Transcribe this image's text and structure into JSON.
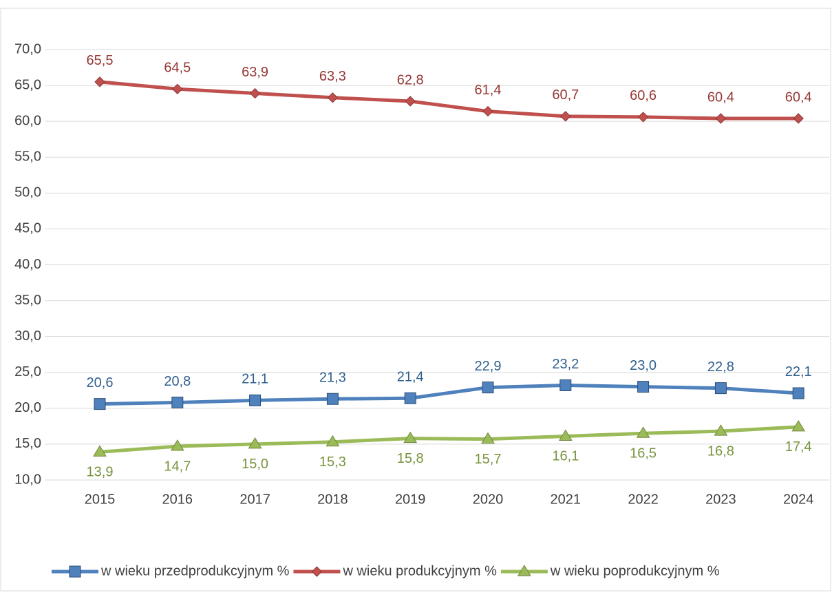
{
  "chart_data": {
    "type": "line",
    "categories": [
      "2015",
      "2016",
      "2017",
      "2018",
      "2019",
      "2020",
      "2021",
      "2022",
      "2023",
      "2024"
    ],
    "ylim": [
      10,
      70
    ],
    "yticks": [
      {
        "value": 10,
        "label": "10,0"
      },
      {
        "value": 15,
        "label": "15,0"
      },
      {
        "value": 20,
        "label": "20,0"
      },
      {
        "value": 25,
        "label": "25,0"
      },
      {
        "value": 30,
        "label": "30,0"
      },
      {
        "value": 35,
        "label": "35,0"
      },
      {
        "value": 40,
        "label": "40,0"
      },
      {
        "value": 45,
        "label": "45,0"
      },
      {
        "value": 50,
        "label": "50,0"
      },
      {
        "value": 55,
        "label": "55,0"
      },
      {
        "value": 60,
        "label": "60,0"
      },
      {
        "value": 65,
        "label": "65,0"
      },
      {
        "value": 70,
        "label": "70,0"
      }
    ],
    "grid": true,
    "legend": "bottom",
    "series": [
      {
        "name": "w wieku przedprodukcyjnym %",
        "color": "#4f81bd",
        "label_color": "#2f5f8f",
        "marker": "square",
        "label_position": "above",
        "values": [
          20.6,
          20.8,
          21.1,
          21.3,
          21.4,
          22.9,
          23.2,
          23.0,
          22.8,
          22.1
        ],
        "value_labels": [
          "20,6",
          "20,8",
          "21,1",
          "21,3",
          "21,4",
          "22,9",
          "23,2",
          "23,0",
          "22,8",
          "22,1"
        ]
      },
      {
        "name": "w wieku produkcyjnym %",
        "color": "#c0504d",
        "label_color": "#953735",
        "marker": "diamond",
        "label_position": "above",
        "values": [
          65.5,
          64.5,
          63.9,
          63.3,
          62.8,
          61.4,
          60.7,
          60.6,
          60.4,
          60.4
        ],
        "value_labels": [
          "65,5",
          "64,5",
          "63,9",
          "63,3",
          "62,8",
          "61,4",
          "60,7",
          "60,6",
          "60,4",
          "60,4"
        ]
      },
      {
        "name": "w wieku poprodukcyjnym %",
        "color": "#9bbb59",
        "label_color": "#77933c",
        "marker": "triangle",
        "label_position": "below",
        "values": [
          13.9,
          14.7,
          15.0,
          15.3,
          15.8,
          15.7,
          16.1,
          16.5,
          16.8,
          17.4
        ],
        "value_labels": [
          "13,9",
          "14,7",
          "15,0",
          "15,3",
          "15,8",
          "15,7",
          "16,1",
          "16,5",
          "16,8",
          "17,4"
        ]
      }
    ]
  }
}
